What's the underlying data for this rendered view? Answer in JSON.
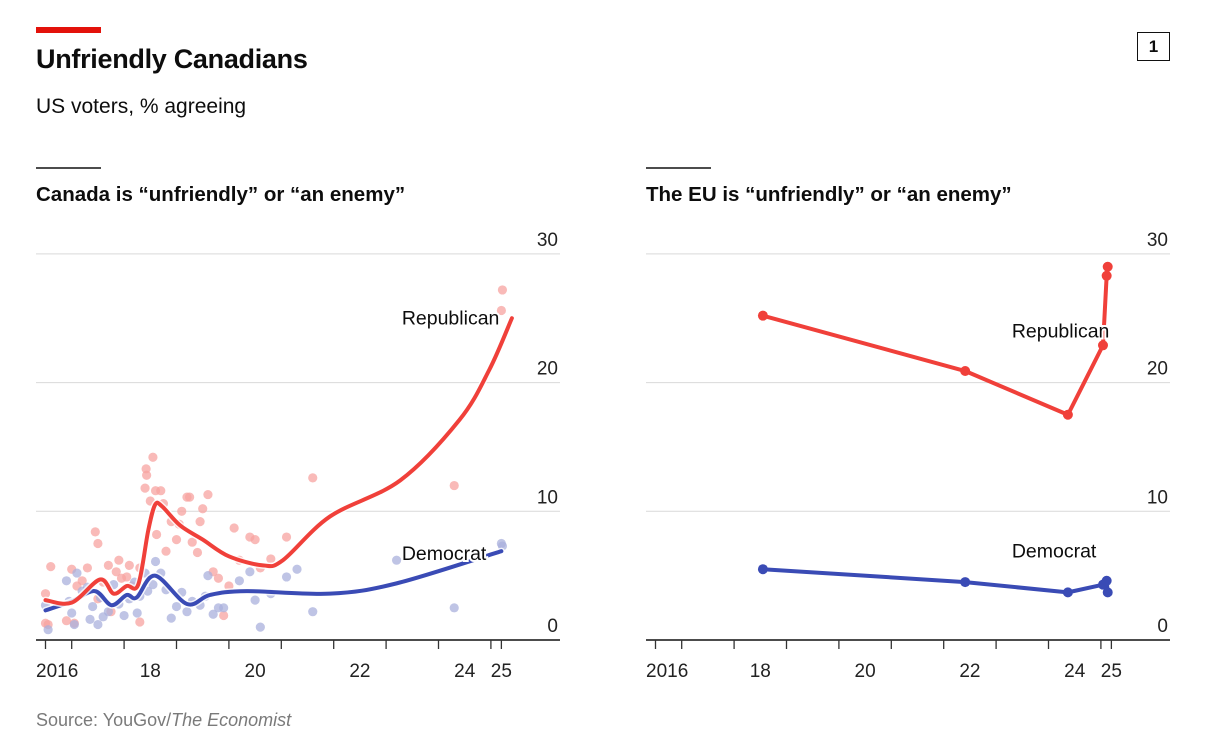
{
  "header": {
    "title": "Unfriendly Canadians",
    "subtitle": "US voters, % agreeing",
    "badge": "1"
  },
  "source": {
    "prefix": "Source: YouGov/",
    "italic": "The Economist"
  },
  "colors": {
    "republican": "#f0403a",
    "democrat": "#3a4bb5",
    "republican_points": "#f7a3a0",
    "democrat_points": "#a9b0dc",
    "brand_red": "#e3120b"
  },
  "chart_data": [
    {
      "type": "scatter",
      "title": "Canada is “unfriendly” or “an enemy”",
      "ylim": [
        0,
        30
      ],
      "yticks": [
        0,
        10,
        20,
        30
      ],
      "grid": true,
      "xticks": [
        2016.5,
        2017,
        2018,
        2019,
        2020,
        2021,
        2022,
        2023,
        2024,
        2025,
        2025.2
      ],
      "xlabels": [
        {
          "text": "2016",
          "x": 2016.5
        },
        {
          "text": "18",
          "x": 2018.5
        },
        {
          "text": "20",
          "x": 2020.5
        },
        {
          "text": "22",
          "x": 2022.5
        },
        {
          "text": "24",
          "x": 2024.5
        },
        {
          "text": "25",
          "x": 2025.2
        }
      ],
      "series": [
        {
          "name": "Republican",
          "label_at": [
            2023.3,
            24.5
          ],
          "trend": [
            [
              2016.5,
              3.1
            ],
            [
              2017,
              2.9
            ],
            [
              2017.54,
              4.7
            ],
            [
              2017.8,
              3.6
            ],
            [
              2018.05,
              4.2
            ],
            [
              2018.27,
              4.3
            ],
            [
              2018.46,
              8.5
            ],
            [
              2018.59,
              10.5
            ],
            [
              2018.72,
              10.4
            ],
            [
              2019.07,
              8.9
            ],
            [
              2019.5,
              7.8
            ],
            [
              2020.0,
              6.5
            ],
            [
              2020.65,
              5.8
            ],
            [
              2021.03,
              6.2
            ],
            [
              2021.93,
              9.6
            ],
            [
              2023.27,
              12.4
            ],
            [
              2024.4,
              17.1
            ],
            [
              2024.97,
              21.0
            ],
            [
              2025.4,
              25.0
            ]
          ],
          "points": [
            [
              2016.5,
              3.6
            ],
            [
              2016.5,
              1.3
            ],
            [
              2016.6,
              5.7
            ],
            [
              2016.55,
              1.2
            ],
            [
              2016.9,
              1.5
            ],
            [
              2017.0,
              5.5
            ],
            [
              2017.05,
              1.3
            ],
            [
              2017.1,
              4.2
            ],
            [
              2017.2,
              4.6
            ],
            [
              2017.3,
              5.6
            ],
            [
              2017.45,
              8.4
            ],
            [
              2017.5,
              7.5
            ],
            [
              2017.5,
              3.2
            ],
            [
              2017.6,
              4.5
            ],
            [
              2017.7,
              5.8
            ],
            [
              2017.75,
              2.2
            ],
            [
              2017.85,
              5.3
            ],
            [
              2017.9,
              6.2
            ],
            [
              2017.95,
              4.8
            ],
            [
              2018.05,
              4.9
            ],
            [
              2018.1,
              5.8
            ],
            [
              2018.15,
              4.2
            ],
            [
              2018.3,
              5.6
            ],
            [
              2018.3,
              1.4
            ],
            [
              2018.4,
              11.8
            ],
            [
              2018.42,
              13.3
            ],
            [
              2018.43,
              12.8
            ],
            [
              2018.5,
              10.8
            ],
            [
              2018.55,
              14.2
            ],
            [
              2018.6,
              11.6
            ],
            [
              2018.62,
              8.2
            ],
            [
              2018.7,
              11.6
            ],
            [
              2018.75,
              10.6
            ],
            [
              2018.8,
              6.9
            ],
            [
              2018.9,
              9.2
            ],
            [
              2019.0,
              7.8
            ],
            [
              2019.05,
              9.0
            ],
            [
              2019.1,
              10.0
            ],
            [
              2019.2,
              11.1
            ],
            [
              2019.25,
              11.1
            ],
            [
              2019.3,
              7.6
            ],
            [
              2019.4,
              6.8
            ],
            [
              2019.45,
              9.2
            ],
            [
              2019.5,
              10.2
            ],
            [
              2019.6,
              11.3
            ],
            [
              2019.7,
              5.3
            ],
            [
              2019.8,
              4.8
            ],
            [
              2019.9,
              1.9
            ],
            [
              2020.0,
              4.2
            ],
            [
              2020.1,
              8.7
            ],
            [
              2020.2,
              6.2
            ],
            [
              2020.4,
              8.0
            ],
            [
              2020.5,
              7.8
            ],
            [
              2020.6,
              5.6
            ],
            [
              2020.8,
              6.3
            ],
            [
              2021.1,
              8.0
            ],
            [
              2021.6,
              12.6
            ],
            [
              2024.3,
              12.0
            ],
            [
              2025.2,
              25.6
            ],
            [
              2025.22,
              27.2
            ]
          ]
        },
        {
          "name": "Democrat",
          "label_at": [
            2023.3,
            6.2
          ],
          "trend": [
            [
              2016.5,
              2.3
            ],
            [
              2017,
              3.0
            ],
            [
              2017.44,
              3.8
            ],
            [
              2017.76,
              2.7
            ],
            [
              2018.05,
              3.5
            ],
            [
              2018.24,
              3.3
            ],
            [
              2018.59,
              5.0
            ],
            [
              2019.2,
              2.8
            ],
            [
              2019.64,
              3.5
            ],
            [
              2020.34,
              3.8
            ],
            [
              2021.93,
              3.6
            ],
            [
              2023.2,
              4.4
            ],
            [
              2025.2,
              6.9
            ]
          ],
          "points": [
            [
              2016.5,
              2.7
            ],
            [
              2016.55,
              0.8
            ],
            [
              2016.9,
              4.6
            ],
            [
              2016.95,
              3.0
            ],
            [
              2017.0,
              2.1
            ],
            [
              2017.05,
              1.2
            ],
            [
              2017.1,
              5.2
            ],
            [
              2017.2,
              3.8
            ],
            [
              2017.3,
              4.1
            ],
            [
              2017.35,
              1.6
            ],
            [
              2017.4,
              2.6
            ],
            [
              2017.5,
              1.2
            ],
            [
              2017.55,
              3.3
            ],
            [
              2017.6,
              1.8
            ],
            [
              2017.7,
              2.2
            ],
            [
              2017.8,
              4.3
            ],
            [
              2017.9,
              2.8
            ],
            [
              2018.0,
              1.9
            ],
            [
              2018.1,
              3.2
            ],
            [
              2018.2,
              4.5
            ],
            [
              2018.25,
              2.1
            ],
            [
              2018.3,
              3.4
            ],
            [
              2018.4,
              5.2
            ],
            [
              2018.45,
              3.8
            ],
            [
              2018.55,
              4.3
            ],
            [
              2018.6,
              6.1
            ],
            [
              2018.7,
              5.2
            ],
            [
              2018.8,
              3.9
            ],
            [
              2018.9,
              1.7
            ],
            [
              2019.0,
              2.6
            ],
            [
              2019.1,
              3.7
            ],
            [
              2019.2,
              2.2
            ],
            [
              2019.3,
              3.0
            ],
            [
              2019.45,
              2.7
            ],
            [
              2019.55,
              3.4
            ],
            [
              2019.6,
              5.0
            ],
            [
              2019.7,
              2.0
            ],
            [
              2019.8,
              2.5
            ],
            [
              2019.9,
              2.5
            ],
            [
              2020.2,
              4.6
            ],
            [
              2020.4,
              5.3
            ],
            [
              2020.5,
              3.1
            ],
            [
              2020.6,
              1.0
            ],
            [
              2020.8,
              3.6
            ],
            [
              2021.1,
              4.9
            ],
            [
              2021.3,
              5.5
            ],
            [
              2021.6,
              2.2
            ],
            [
              2023.2,
              6.2
            ],
            [
              2024.3,
              2.5
            ],
            [
              2025.2,
              7.5
            ],
            [
              2025.22,
              7.3
            ]
          ]
        }
      ]
    },
    {
      "type": "line",
      "title": "The EU is “unfriendly” or “an enemy”",
      "ylim": [
        0,
        30
      ],
      "yticks": [
        0,
        10,
        20,
        30
      ],
      "grid": true,
      "xticks": [
        2016.5,
        2017,
        2018,
        2019,
        2020,
        2021,
        2022,
        2023,
        2024,
        2025,
        2025.2
      ],
      "xlabels": [
        {
          "text": "2016",
          "x": 2016.5
        },
        {
          "text": "18",
          "x": 2018.5
        },
        {
          "text": "20",
          "x": 2020.5
        },
        {
          "text": "22",
          "x": 2022.5
        },
        {
          "text": "24",
          "x": 2024.5
        },
        {
          "text": "25",
          "x": 2025.2
        }
      ],
      "series": [
        {
          "name": "Republican",
          "label_at": [
            2023.3,
            23.5
          ],
          "values": [
            [
              2018.55,
              25.2
            ],
            [
              2022.41,
              20.9
            ],
            [
              2024.37,
              17.5
            ],
            [
              2025.04,
              22.9
            ],
            [
              2025.11,
              28.3
            ],
            [
              2025.13,
              29.0
            ]
          ]
        },
        {
          "name": "Democrat",
          "label_at": [
            2023.3,
            6.4
          ],
          "values": [
            [
              2018.55,
              5.5
            ],
            [
              2022.41,
              4.5
            ],
            [
              2024.37,
              3.7
            ],
            [
              2025.04,
              4.3
            ],
            [
              2025.11,
              4.6
            ],
            [
              2025.13,
              3.7
            ]
          ]
        }
      ]
    }
  ]
}
